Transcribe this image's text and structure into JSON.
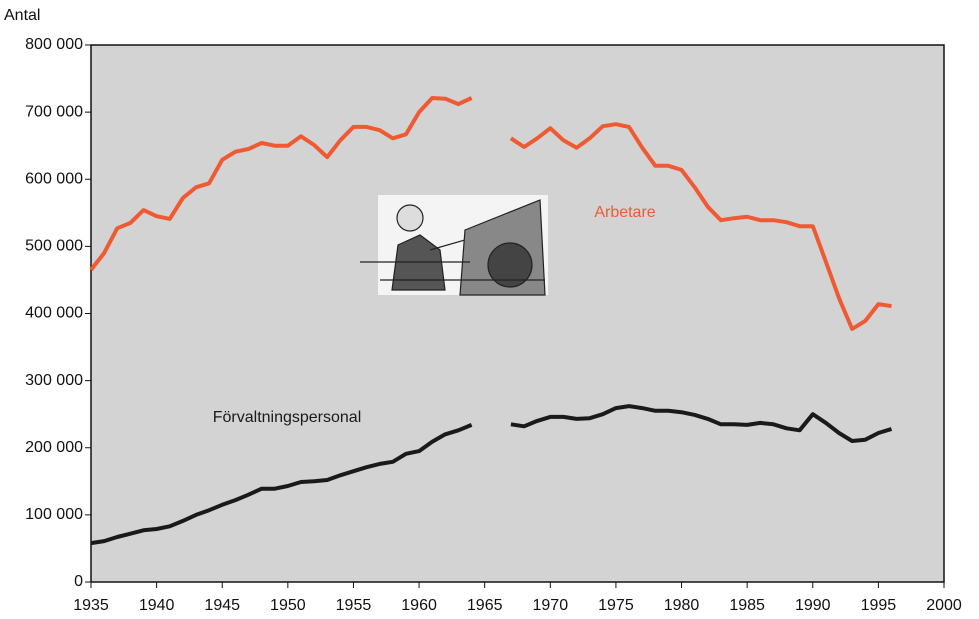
{
  "chart_data": {
    "type": "line",
    "y_label": "Antal",
    "x": [
      1935,
      1936,
      1937,
      1938,
      1939,
      1940,
      1941,
      1942,
      1943,
      1944,
      1945,
      1946,
      1947,
      1948,
      1949,
      1950,
      1951,
      1952,
      1953,
      1954,
      1955,
      1956,
      1957,
      1958,
      1959,
      1960,
      1961,
      1962,
      1963,
      1964,
      1965,
      1966,
      1967,
      1968,
      1969,
      1970,
      1971,
      1972,
      1973,
      1974,
      1975,
      1976,
      1977,
      1978,
      1979,
      1980,
      1981,
      1982,
      1983,
      1984,
      1985,
      1986,
      1987,
      1988,
      1989,
      1990,
      1991,
      1992,
      1993,
      1994,
      1995,
      1996
    ],
    "series": [
      {
        "name": "Arbetare",
        "color": "#f05a32",
        "values": [
          465000,
          490000,
          527000,
          535000,
          554000,
          545000,
          541000,
          572000,
          588000,
          594000,
          629000,
          641000,
          645000,
          654000,
          650000,
          650000,
          664000,
          651000,
          633000,
          658000,
          678000,
          678000,
          673000,
          661000,
          667000,
          700000,
          721000,
          720000,
          712000,
          721000,
          null,
          null,
          661000,
          648000,
          661000,
          676000,
          658000,
          647000,
          661000,
          679000,
          682000,
          678000,
          647000,
          620000,
          620000,
          614000,
          588000,
          559000,
          539000,
          542000,
          544000,
          539000,
          539000,
          536000,
          530000,
          530000,
          477000,
          423000,
          377000,
          389000,
          414000,
          411000
        ]
      },
      {
        "name": "Förvaltningspersonal",
        "color": "#1a1a1a",
        "values": [
          58000,
          61000,
          67000,
          72000,
          77000,
          79000,
          83000,
          91000,
          100000,
          107000,
          115000,
          122000,
          130000,
          139000,
          139000,
          143000,
          149000,
          150000,
          152000,
          159000,
          165000,
          171000,
          176000,
          179000,
          191000,
          195000,
          209000,
          220000,
          226000,
          234000,
          null,
          null,
          235000,
          232000,
          240000,
          246000,
          246000,
          243000,
          244000,
          250000,
          259000,
          262000,
          259000,
          255000,
          255000,
          253000,
          249000,
          243000,
          235000,
          235000,
          234000,
          237000,
          235000,
          229000,
          226000,
          250000,
          237000,
          222000,
          210000,
          212000,
          222000,
          228000
        ]
      }
    ],
    "xlim": [
      1935,
      2000
    ],
    "xticks": [
      1935,
      1940,
      1945,
      1950,
      1955,
      1960,
      1965,
      1970,
      1975,
      1980,
      1985,
      1990,
      1995,
      2000
    ],
    "ylim": [
      0,
      800000
    ],
    "yticks": [
      0,
      {
        "value": 100000,
        "label": "100 000"
      },
      {
        "value": 200000,
        "label": "200 000"
      },
      {
        "value": 300000,
        "label": "300 000"
      },
      {
        "value": 400000,
        "label": "400 000"
      },
      {
        "value": 500000,
        "label": "500 000"
      },
      {
        "value": 600000,
        "label": "600 000"
      },
      {
        "value": 700000,
        "label": "700 000"
      },
      {
        "value": 800000,
        "label": "800 000"
      }
    ],
    "background": "#d3d3d3"
  }
}
